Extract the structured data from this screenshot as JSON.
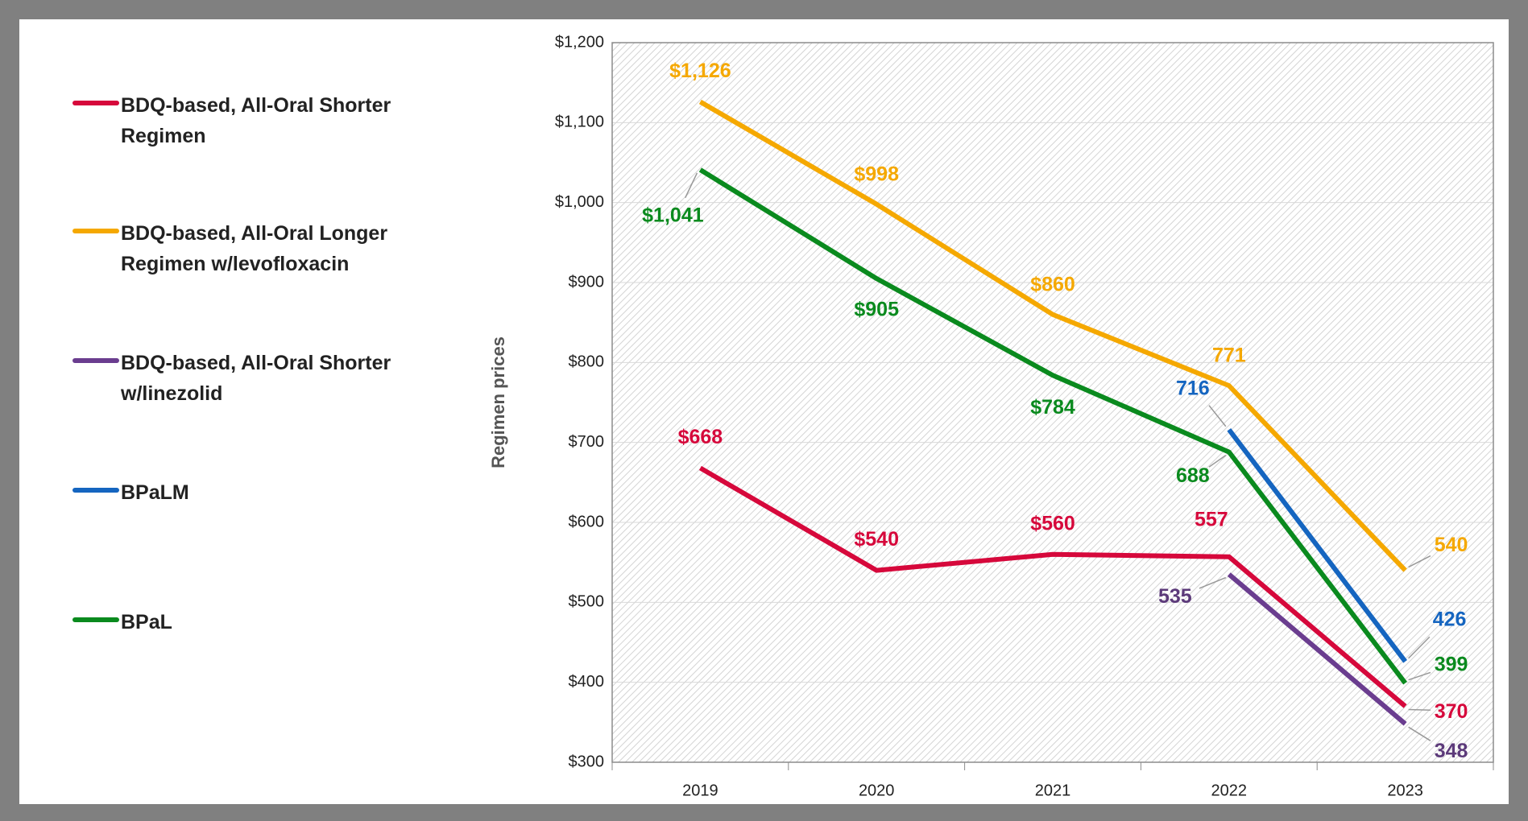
{
  "chart_data": {
    "type": "line",
    "y_label": "Regimen prices",
    "categories": [
      "2019",
      "2020",
      "2021",
      "2022",
      "2023"
    ],
    "ylim": [
      300,
      1200
    ],
    "yticks": [
      {
        "value": 300,
        "label": "$300"
      },
      {
        "value": 400,
        "label": "$400"
      },
      {
        "value": 500,
        "label": "$500"
      },
      {
        "value": 600,
        "label": "$600"
      },
      {
        "value": 700,
        "label": "$700"
      },
      {
        "value": 800,
        "label": "$800"
      },
      {
        "value": 900,
        "label": "$900"
      },
      {
        "value": 1000,
        "label": "$1,000"
      },
      {
        "value": 1100,
        "label": "$1,100"
      },
      {
        "value": 1200,
        "label": "$1,200"
      }
    ],
    "grid": true,
    "legend": "left",
    "series": [
      {
        "name": "BDQ-based, All-Oral Shorter Regimen",
        "color": "#d6083b",
        "values": [
          668,
          540,
          560,
          557,
          370
        ],
        "value_labels": [
          "$668",
          "$540",
          "$560",
          "557",
          "370"
        ]
      },
      {
        "name": "BDQ-based, All-Oral Longer Regimen w/levofloxacin",
        "color": "#f5a800",
        "values": [
          1126,
          998,
          860,
          771,
          540
        ],
        "value_labels": [
          "$1,126",
          "$998",
          "$860",
          "771",
          "540"
        ]
      },
      {
        "name": "BDQ-based, All-Oral Shorter w/linezolid",
        "color": "#6a3d8f",
        "values": [
          null,
          null,
          null,
          535,
          348
        ],
        "value_labels": [
          null,
          null,
          null,
          "535",
          "348"
        ]
      },
      {
        "name": "BPaLM",
        "color": "#1565c0",
        "values": [
          null,
          null,
          null,
          716,
          426
        ],
        "value_labels": [
          null,
          null,
          null,
          "716",
          "426"
        ]
      },
      {
        "name": "BPaL",
        "color": "#0a8a1e",
        "values": [
          1041,
          905,
          784,
          688,
          399
        ],
        "value_labels": [
          "$1,041",
          "$905",
          "$784",
          "688",
          "399"
        ]
      }
    ]
  }
}
